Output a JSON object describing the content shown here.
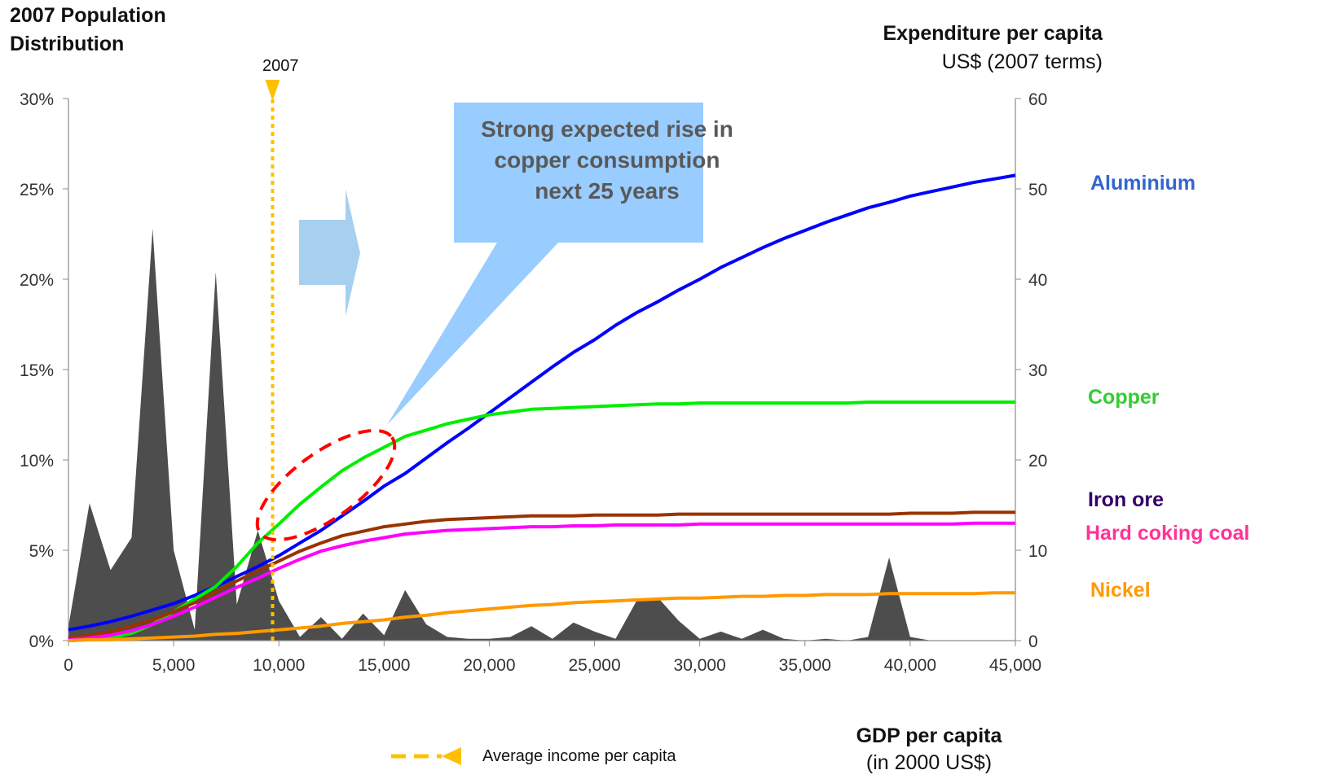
{
  "titles": {
    "left_line1": "2007 Population",
    "left_line2": "Distribution",
    "right_line1": "Expenditure per capita",
    "right_line2": "US$ (2007 terms)",
    "x_line1": "GDP per capita",
    "x_line2": "(in 2000 US$)",
    "year_marker": "2007"
  },
  "callout": {
    "text": "Strong expected rise in copper consumption next 25 years"
  },
  "legend": {
    "label": "Average income per capita"
  },
  "colors": {
    "population": "#4d4d4d",
    "marker": "#ffc000",
    "callout": "#99ccff",
    "arrow": "#a6d0ee",
    "ellipse": "#ff0000"
  },
  "chart_data": {
    "type": "line",
    "x_axis": {
      "min": 0,
      "max": 45000,
      "ticks": [
        0,
        5000,
        10000,
        15000,
        20000,
        25000,
        30000,
        35000,
        40000,
        45000
      ],
      "tick_labels": [
        "0",
        "5,000",
        "10,000",
        "15,000",
        "20,000",
        "25,000",
        "30,000",
        "35,000",
        "40,000",
        "45,000"
      ]
    },
    "y_left": {
      "min": 0,
      "max": 30,
      "ticks": [
        0,
        5,
        10,
        15,
        20,
        25,
        30
      ],
      "tick_labels": [
        "0%",
        "5%",
        "10%",
        "15%",
        "20%",
        "25%",
        "30%"
      ]
    },
    "y_right": {
      "min": 0,
      "max": 60,
      "ticks": [
        0,
        10,
        20,
        30,
        40,
        50,
        60
      ],
      "tick_labels": [
        "0",
        "10",
        "20",
        "30",
        "40",
        "50",
        "60"
      ]
    },
    "average_income_2007": 9700,
    "population_distribution": {
      "x": [
        0,
        1000,
        2000,
        3000,
        4000,
        5000,
        6000,
        7000,
        8000,
        9000,
        10000,
        11000,
        12000,
        13000,
        14000,
        15000,
        16000,
        17000,
        18000,
        19000,
        20000,
        21000,
        22000,
        23000,
        24000,
        25000,
        26000,
        27000,
        28000,
        29000,
        30000,
        31000,
        32000,
        33000,
        34000,
        35000,
        36000,
        37000,
        38000,
        39000,
        40000,
        41000,
        42000,
        43000,
        44000,
        45000
      ],
      "y": [
        0.8,
        7.6,
        3.9,
        5.7,
        22.8,
        5.0,
        0.6,
        20.4,
        2.0,
        6.1,
        2.2,
        0.2,
        1.3,
        0.1,
        1.5,
        0.3,
        2.8,
        0.9,
        0.2,
        0.1,
        0.1,
        0.2,
        0.8,
        0.1,
        1.0,
        0.5,
        0.1,
        2.2,
        2.4,
        1.1,
        0.1,
        0.5,
        0.1,
        0.6,
        0.1,
        0.0,
        0.1,
        0.0,
        0.2,
        4.6,
        0.2,
        0.0,
        0.0,
        0.0,
        0.0,
        0.0
      ]
    },
    "series": [
      {
        "name": "Aluminium",
        "color": "#0000ff",
        "label_color": "#3366cc",
        "x": [
          0,
          1000,
          2000,
          3000,
          4000,
          5000,
          6000,
          7000,
          8000,
          9000,
          10000,
          11000,
          12000,
          13000,
          14000,
          15000,
          16000,
          17000,
          18000,
          19000,
          20000,
          21000,
          22000,
          23000,
          24000,
          25000,
          26000,
          27000,
          28000,
          29000,
          30000,
          31000,
          32000,
          33000,
          34000,
          35000,
          36000,
          37000,
          38000,
          39000,
          40000,
          41000,
          42000,
          43000,
          44000,
          45000
        ],
        "y": [
          1.2,
          1.6,
          2.1,
          2.7,
          3.4,
          4.1,
          5.0,
          6.0,
          7.1,
          8.2,
          9.4,
          10.8,
          12.2,
          13.8,
          15.4,
          17.1,
          18.5,
          20.2,
          21.9,
          23.5,
          25.2,
          26.9,
          28.6,
          30.3,
          31.9,
          33.3,
          34.9,
          36.3,
          37.5,
          38.8,
          40.0,
          41.3,
          42.4,
          43.5,
          44.5,
          45.4,
          46.3,
          47.1,
          47.9,
          48.5,
          49.2,
          49.7,
          50.2,
          50.7,
          51.1,
          51.5
        ]
      },
      {
        "name": "Copper",
        "color": "#00ee00",
        "label_color": "#33cc33",
        "x": [
          0,
          1000,
          2000,
          3000,
          4000,
          5000,
          6000,
          7000,
          8000,
          9000,
          10000,
          11000,
          12000,
          13000,
          14000,
          15000,
          16000,
          17000,
          18000,
          19000,
          20000,
          21000,
          22000,
          23000,
          24000,
          25000,
          26000,
          27000,
          28000,
          29000,
          30000,
          31000,
          32000,
          33000,
          34000,
          35000,
          36000,
          37000,
          38000,
          39000,
          40000,
          41000,
          42000,
          43000,
          44000,
          45000
        ],
        "y": [
          0.0,
          0.1,
          0.3,
          0.8,
          1.8,
          3.2,
          4.6,
          6.0,
          8.2,
          10.8,
          12.9,
          15.1,
          17.0,
          18.8,
          20.2,
          21.4,
          22.6,
          23.3,
          24.0,
          24.5,
          25.0,
          25.3,
          25.6,
          25.7,
          25.8,
          25.9,
          26.0,
          26.1,
          26.2,
          26.2,
          26.3,
          26.3,
          26.3,
          26.3,
          26.3,
          26.3,
          26.3,
          26.3,
          26.4,
          26.4,
          26.4,
          26.4,
          26.4,
          26.4,
          26.4,
          26.4
        ]
      },
      {
        "name": "Iron ore",
        "color": "#993300",
        "label_color": "#330066",
        "x": [
          0,
          1000,
          2000,
          3000,
          4000,
          5000,
          6000,
          7000,
          8000,
          9000,
          10000,
          11000,
          12000,
          13000,
          14000,
          15000,
          16000,
          17000,
          18000,
          19000,
          20000,
          21000,
          22000,
          23000,
          24000,
          25000,
          26000,
          27000,
          28000,
          29000,
          30000,
          31000,
          32000,
          33000,
          34000,
          35000,
          36000,
          37000,
          38000,
          39000,
          40000,
          41000,
          42000,
          43000,
          44000,
          45000
        ],
        "y": [
          0.3,
          0.6,
          1.0,
          1.6,
          2.3,
          3.2,
          4.2,
          5.4,
          6.6,
          7.7,
          8.8,
          9.9,
          10.8,
          11.6,
          12.1,
          12.6,
          12.9,
          13.2,
          13.4,
          13.5,
          13.6,
          13.7,
          13.8,
          13.8,
          13.8,
          13.9,
          13.9,
          13.9,
          13.9,
          14.0,
          14.0,
          14.0,
          14.0,
          14.0,
          14.0,
          14.0,
          14.0,
          14.0,
          14.0,
          14.0,
          14.1,
          14.1,
          14.1,
          14.2,
          14.2,
          14.2
        ]
      },
      {
        "name": "Hard coking coal",
        "color": "#ff00ff",
        "label_color": "#ff3399",
        "x": [
          0,
          1000,
          2000,
          3000,
          4000,
          5000,
          6000,
          7000,
          8000,
          9000,
          10000,
          11000,
          12000,
          13000,
          14000,
          15000,
          16000,
          17000,
          18000,
          19000,
          20000,
          21000,
          22000,
          23000,
          24000,
          25000,
          26000,
          27000,
          28000,
          29000,
          30000,
          31000,
          32000,
          33000,
          34000,
          35000,
          36000,
          37000,
          38000,
          39000,
          40000,
          41000,
          42000,
          43000,
          44000,
          45000
        ],
        "y": [
          0.1,
          0.3,
          0.6,
          1.1,
          1.8,
          2.7,
          3.7,
          4.8,
          5.9,
          6.9,
          8.0,
          9.0,
          9.9,
          10.5,
          11.0,
          11.4,
          11.8,
          12.0,
          12.2,
          12.3,
          12.4,
          12.5,
          12.6,
          12.6,
          12.7,
          12.7,
          12.8,
          12.8,
          12.8,
          12.8,
          12.9,
          12.9,
          12.9,
          12.9,
          12.9,
          12.9,
          12.9,
          12.9,
          12.9,
          12.9,
          12.9,
          12.9,
          12.9,
          13.0,
          13.0,
          13.0
        ]
      },
      {
        "name": "Nickel",
        "color": "#ff9900",
        "label_color": "#ff9900",
        "x": [
          0,
          1000,
          2000,
          3000,
          4000,
          5000,
          6000,
          7000,
          8000,
          9000,
          10000,
          11000,
          12000,
          13000,
          14000,
          15000,
          16000,
          17000,
          18000,
          19000,
          20000,
          21000,
          22000,
          23000,
          24000,
          25000,
          26000,
          27000,
          28000,
          29000,
          30000,
          31000,
          32000,
          33000,
          34000,
          35000,
          36000,
          37000,
          38000,
          39000,
          40000,
          41000,
          42000,
          43000,
          44000,
          45000
        ],
        "y": [
          0.0,
          0.1,
          0.1,
          0.2,
          0.3,
          0.4,
          0.5,
          0.7,
          0.8,
          1.0,
          1.2,
          1.4,
          1.6,
          1.9,
          2.1,
          2.3,
          2.6,
          2.8,
          3.1,
          3.3,
          3.5,
          3.7,
          3.9,
          4.0,
          4.2,
          4.3,
          4.4,
          4.5,
          4.6,
          4.7,
          4.7,
          4.8,
          4.9,
          4.9,
          5.0,
          5.0,
          5.1,
          5.1,
          5.1,
          5.2,
          5.2,
          5.2,
          5.2,
          5.2,
          5.3,
          5.3
        ]
      }
    ]
  }
}
